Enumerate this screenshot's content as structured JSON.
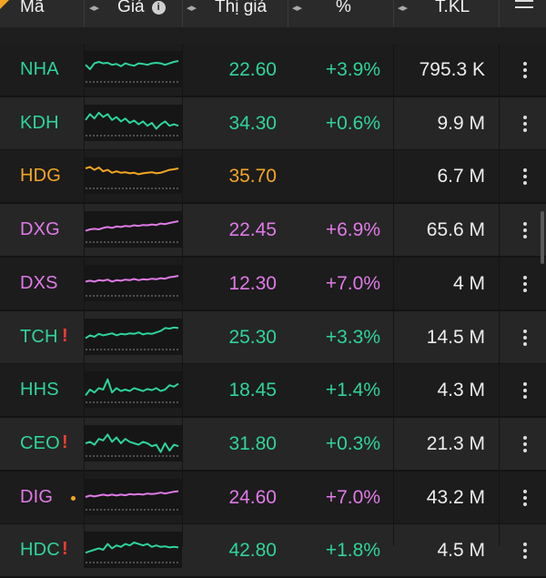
{
  "header": {
    "col_symbol": "Mã",
    "col_price": "Giá",
    "col_match": "Thị giá",
    "col_pct": "%",
    "col_volume": "T.KL",
    "sort_glyph": "◂▸",
    "info_glyph": "i"
  },
  "colors": {
    "up": "#2ed59a",
    "ref": "#f5a623",
    "ceiling": "#e07ae8",
    "alert": "#ff3b30",
    "background": "#1e1e1e"
  },
  "rows": [
    {
      "symbol": "NHA",
      "flag": "",
      "dot": false,
      "price": "22.60",
      "pct": "+3.9%",
      "volume": "795.3 K",
      "status": "up",
      "spark": [
        0.35,
        0.5,
        0.3,
        0.25,
        0.3,
        0.28,
        0.35,
        0.32,
        0.4,
        0.3,
        0.35,
        0.38,
        0.3,
        0.32,
        0.35,
        0.3,
        0.28,
        0.3,
        0.35,
        0.3,
        0.25,
        0.22
      ]
    },
    {
      "symbol": "KDH",
      "flag": "",
      "dot": false,
      "price": "34.30",
      "pct": "+0.6%",
      "volume": "9.9 M",
      "status": "up",
      "spark": [
        0.4,
        0.2,
        0.35,
        0.15,
        0.3,
        0.2,
        0.4,
        0.3,
        0.45,
        0.35,
        0.5,
        0.42,
        0.55,
        0.45,
        0.6,
        0.5,
        0.7,
        0.55,
        0.45,
        0.6,
        0.55,
        0.6
      ]
    },
    {
      "symbol": "HDG",
      "flag": "",
      "dot": false,
      "price": "35.70",
      "pct": "",
      "volume": "6.7 M",
      "status": "ref",
      "spark": [
        0.25,
        0.2,
        0.3,
        0.22,
        0.35,
        0.3,
        0.4,
        0.35,
        0.4,
        0.38,
        0.42,
        0.4,
        0.45,
        0.42,
        0.4,
        0.38,
        0.42,
        0.4,
        0.35,
        0.3,
        0.28,
        0.25
      ]
    },
    {
      "symbol": "DXG",
      "flag": "",
      "dot": false,
      "price": "22.45",
      "pct": "+6.9%",
      "volume": "65.6 M",
      "status": "ceiling",
      "spark": [
        0.55,
        0.5,
        0.48,
        0.5,
        0.45,
        0.42,
        0.45,
        0.4,
        0.42,
        0.38,
        0.4,
        0.36,
        0.38,
        0.35,
        0.36,
        0.33,
        0.35,
        0.3,
        0.32,
        0.28,
        0.25,
        0.22
      ]
    },
    {
      "symbol": "DXS",
      "flag": "",
      "dot": false,
      "price": "12.30",
      "pct": "+7.0%",
      "volume": "4 M",
      "status": "ceiling",
      "spark": [
        0.45,
        0.42,
        0.45,
        0.4,
        0.42,
        0.38,
        0.45,
        0.4,
        0.42,
        0.38,
        0.4,
        0.36,
        0.4,
        0.37,
        0.38,
        0.35,
        0.37,
        0.33,
        0.35,
        0.3,
        0.28,
        0.25
      ]
    },
    {
      "symbol": "TCH",
      "flag": "!",
      "dot": false,
      "price": "25.30",
      "pct": "+3.3%",
      "volume": "14.5 M",
      "status": "up",
      "spark": [
        0.55,
        0.45,
        0.5,
        0.4,
        0.45,
        0.42,
        0.38,
        0.45,
        0.4,
        0.42,
        0.38,
        0.4,
        0.35,
        0.42,
        0.38,
        0.4,
        0.35,
        0.3,
        0.2,
        0.22,
        0.18,
        0.2
      ]
    },
    {
      "symbol": "HHS",
      "flag": "",
      "dot": false,
      "price": "18.45",
      "pct": "+1.4%",
      "volume": "4.3 M",
      "status": "up",
      "spark": [
        0.7,
        0.5,
        0.6,
        0.45,
        0.5,
        0.15,
        0.6,
        0.45,
        0.55,
        0.5,
        0.55,
        0.45,
        0.5,
        0.55,
        0.48,
        0.52,
        0.45,
        0.55,
        0.5,
        0.35,
        0.4,
        0.3
      ]
    },
    {
      "symbol": "CEO",
      "flag": "!",
      "dot": false,
      "price": "31.80",
      "pct": "+0.3%",
      "volume": "21.3 M",
      "status": "up",
      "spark": [
        0.5,
        0.45,
        0.55,
        0.35,
        0.4,
        0.2,
        0.45,
        0.3,
        0.5,
        0.35,
        0.45,
        0.5,
        0.55,
        0.45,
        0.5,
        0.6,
        0.55,
        0.8,
        0.5,
        0.75,
        0.55,
        0.6
      ]
    },
    {
      "symbol": "DIG",
      "flag": "",
      "dot": true,
      "price": "24.60",
      "pct": "+7.0%",
      "volume": "43.2 M",
      "status": "ceiling",
      "spark": [
        0.5,
        0.45,
        0.48,
        0.45,
        0.42,
        0.45,
        0.42,
        0.45,
        0.42,
        0.44,
        0.4,
        0.42,
        0.4,
        0.42,
        0.38,
        0.4,
        0.38,
        0.35,
        0.38,
        0.35,
        0.32,
        0.3
      ]
    },
    {
      "symbol": "HDC",
      "flag": "!",
      "dot": false,
      "price": "42.80",
      "pct": "+1.8%",
      "volume": "4.5 M",
      "status": "up",
      "spark": [
        0.6,
        0.55,
        0.5,
        0.45,
        0.5,
        0.3,
        0.45,
        0.35,
        0.4,
        0.3,
        0.35,
        0.25,
        0.3,
        0.35,
        0.3,
        0.4,
        0.35,
        0.4,
        0.38,
        0.42,
        0.4,
        0.42
      ]
    }
  ]
}
